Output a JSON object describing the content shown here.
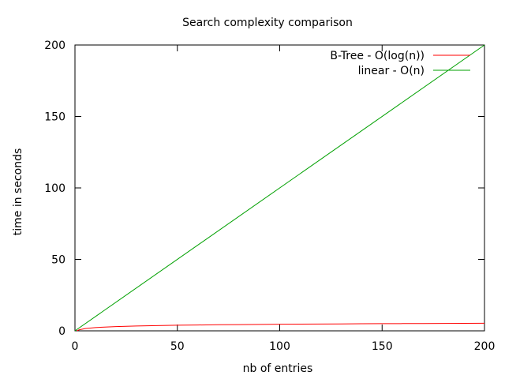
{
  "chart_data": {
    "type": "line",
    "title": "Search complexity comparison",
    "xlabel": "nb of entries",
    "ylabel": "time in seconds",
    "xlim": [
      0,
      200
    ],
    "ylim": [
      0,
      200
    ],
    "xticks": [
      0,
      50,
      100,
      150,
      200
    ],
    "yticks": [
      0,
      50,
      100,
      150,
      200
    ],
    "grid": false,
    "legend_position": "top-right",
    "series": [
      {
        "name": "B-Tree - O(log(n))",
        "color": "#ff0000",
        "x": [
          1,
          2,
          5,
          10,
          20,
          30,
          40,
          50,
          60,
          70,
          80,
          90,
          100,
          110,
          120,
          130,
          140,
          150,
          160,
          170,
          180,
          190,
          200
        ],
        "y": [
          0,
          0.69,
          1.61,
          2.3,
          3.0,
          3.4,
          3.69,
          3.91,
          4.09,
          4.25,
          4.38,
          4.5,
          4.61,
          4.7,
          4.79,
          4.87,
          4.94,
          5.01,
          5.08,
          5.14,
          5.19,
          5.25,
          5.3
        ]
      },
      {
        "name": "linear - O(n)",
        "color": "#00a000",
        "x": [
          0,
          200
        ],
        "y": [
          0,
          200
        ]
      }
    ]
  }
}
